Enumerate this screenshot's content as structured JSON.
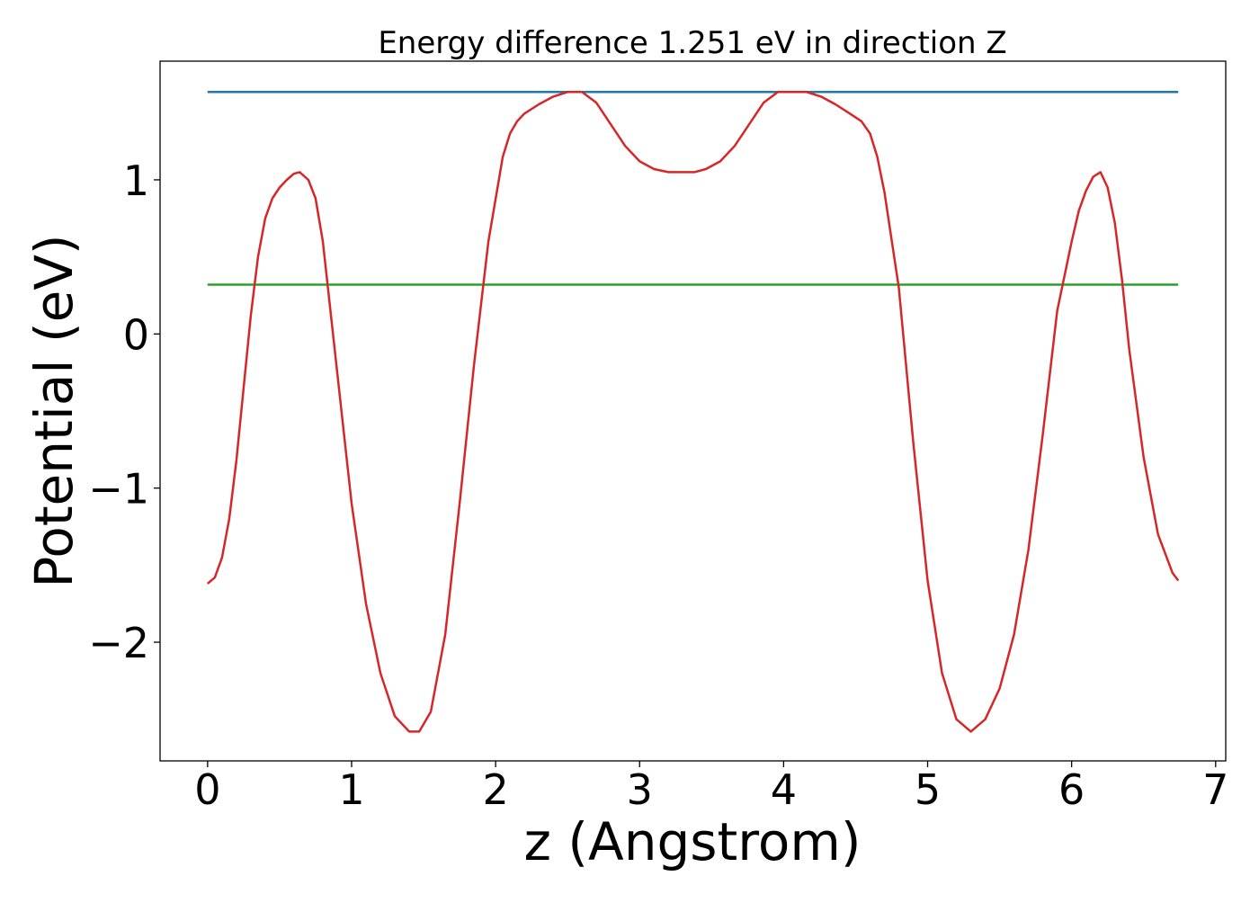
{
  "chart_data": {
    "type": "line",
    "title": "Energy difference 1.251 eV in direction Z",
    "xlabel": "z (Angstrom)",
    "ylabel": "Potential (eV)",
    "xlim": [
      -0.33,
      7.07
    ],
    "ylim": [
      -2.77,
      1.77
    ],
    "xticks": [
      0,
      1,
      2,
      3,
      4,
      5,
      6,
      7
    ],
    "xtick_labels": [
      "0",
      "1",
      "2",
      "3",
      "4",
      "5",
      "6",
      "7"
    ],
    "yticks": [
      1,
      0,
      -1,
      -2
    ],
    "ytick_labels": [
      "1",
      "0",
      "−1",
      "−2"
    ],
    "grid": false,
    "legend": "none",
    "series": [
      {
        "color": "#1f77b4",
        "x": [
          0,
          6.74
        ],
        "y": [
          1.57,
          1.57
        ]
      },
      {
        "color": "#2ca02c",
        "x": [
          0,
          6.74
        ],
        "y": [
          0.32,
          0.32
        ]
      },
      {
        "color": "#d62728",
        "x": [
          0,
          0.05,
          0.1,
          0.15,
          0.2,
          0.25,
          0.3,
          0.35,
          0.4,
          0.45,
          0.5,
          0.55,
          0.6,
          0.64,
          0.7,
          0.75,
          0.8,
          0.9,
          1.0,
          1.1,
          1.2,
          1.3,
          1.4,
          1.47,
          1.55,
          1.65,
          1.75,
          1.85,
          1.95,
          2.05,
          2.1,
          2.15,
          2.2,
          2.3,
          2.4,
          2.5,
          2.6,
          2.7,
          2.8,
          2.9,
          3.0,
          3.1,
          3.2,
          3.3,
          3.38,
          3.46,
          3.56,
          3.66,
          3.76,
          3.86,
          3.96,
          4.06,
          4.16,
          4.26,
          4.36,
          4.46,
          4.54,
          4.6,
          4.65,
          4.7,
          4.8,
          4.9,
          5.0,
          5.1,
          5.2,
          5.3,
          5.4,
          5.5,
          5.6,
          5.7,
          5.8,
          5.9,
          6.0,
          6.05,
          6.1,
          6.15,
          6.2,
          6.25,
          6.3,
          6.35,
          6.4,
          6.5,
          6.6,
          6.7,
          6.74
        ],
        "y": [
          -1.62,
          -1.58,
          -1.45,
          -1.2,
          -0.82,
          -0.35,
          0.12,
          0.5,
          0.75,
          0.88,
          0.95,
          1.0,
          1.04,
          1.05,
          1.0,
          0.88,
          0.6,
          -0.25,
          -1.1,
          -1.75,
          -2.2,
          -2.48,
          -2.58,
          -2.58,
          -2.45,
          -1.95,
          -1.1,
          -0.2,
          0.6,
          1.15,
          1.3,
          1.38,
          1.43,
          1.49,
          1.54,
          1.57,
          1.57,
          1.5,
          1.36,
          1.22,
          1.12,
          1.07,
          1.05,
          1.05,
          1.05,
          1.07,
          1.12,
          1.22,
          1.36,
          1.5,
          1.57,
          1.57,
          1.57,
          1.54,
          1.49,
          1.43,
          1.38,
          1.3,
          1.15,
          0.92,
          0.3,
          -0.7,
          -1.6,
          -2.2,
          -2.5,
          -2.58,
          -2.5,
          -2.3,
          -1.95,
          -1.4,
          -0.65,
          0.15,
          0.6,
          0.8,
          0.93,
          1.02,
          1.05,
          0.95,
          0.72,
          0.35,
          -0.1,
          -0.8,
          -1.3,
          -1.55,
          -1.6
        ]
      }
    ]
  }
}
